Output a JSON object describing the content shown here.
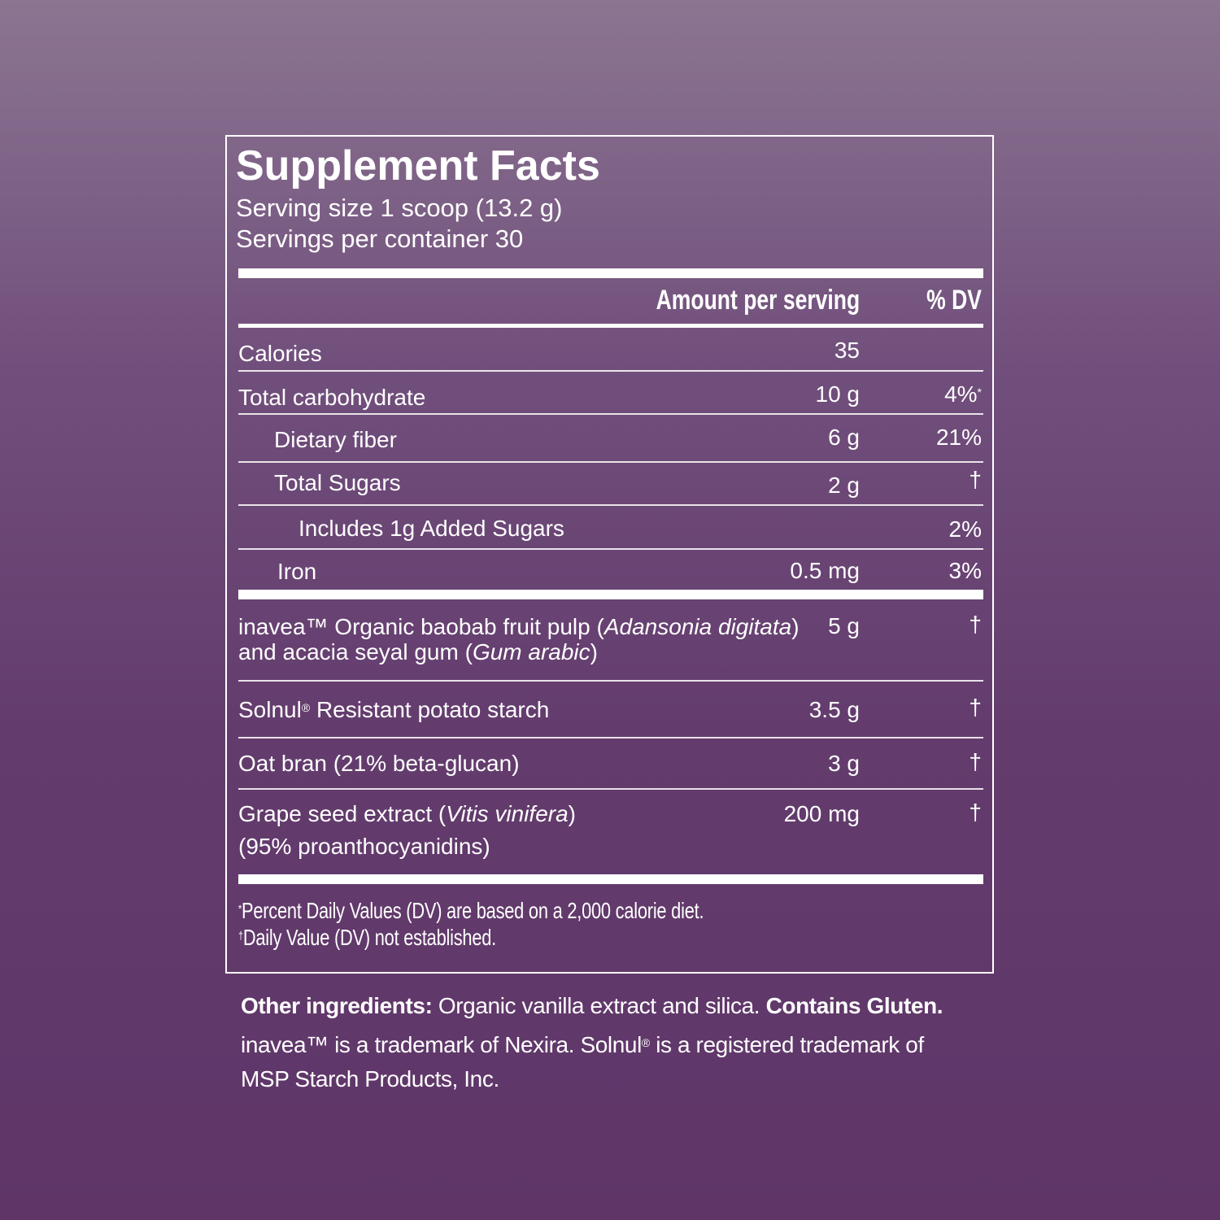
{
  "header": {
    "title": "Supplement Facts",
    "serving_size": "Serving size 1 scoop (13.2 g)",
    "servings_per_container": "Servings per container 30"
  },
  "table": {
    "columns": [
      "Amount per serving",
      "% DV"
    ],
    "nutrients": [
      {
        "name": "Calories",
        "amount": "35"
      },
      {
        "name": "Total carbohydrate",
        "amount": "10 g",
        "dv": "4%",
        "dv_mark": "*"
      },
      {
        "name": "Dietary fiber",
        "amount": "6 g",
        "dv": "21%"
      },
      {
        "name": "Total Sugars",
        "amount": "2 g",
        "dv": "†"
      },
      {
        "name": "Includes 1g Added Sugars",
        "dv": "2%"
      },
      {
        "name": "Iron",
        "amount": "0.5 mg",
        "dv": "3%"
      }
    ],
    "ingredients": [
      {
        "name": [
          "inavea™ Organic baobab fruit pulp (",
          "Adansonia digitata",
          ")"
        ],
        "name_line2": [
          "and acacia seyal gum (",
          "Gum arabic",
          ")"
        ],
        "amount": "5 g",
        "dv": "†"
      },
      {
        "name": [
          "Solnul",
          "®",
          " Resistant potato starch"
        ],
        "amount": "3.5 g",
        "dv": "†"
      },
      {
        "name": [
          "Oat bran (21% beta-glucan)"
        ],
        "amount": "3 g",
        "dv": "†"
      },
      {
        "name": [
          "Grape seed extract (",
          "Vitis vinifera",
          ")"
        ],
        "name_line2": [
          "(95% proanthocyanidins)"
        ],
        "amount": "200 mg",
        "dv": "†"
      }
    ],
    "footnotes": [
      {
        "mark": "*",
        "text": "Percent Daily Values (DV) are based on a 2,000 calorie diet."
      },
      {
        "mark": "†",
        "text": "Daily Value (DV) not established."
      }
    ]
  },
  "other_ingredients": {
    "label": "Other ingredients:",
    "text": " Organic vanilla extract and silica. ",
    "warning": "Contains Gluten."
  },
  "trademarks": [
    "inavea™ is a trademark of Nexira. Solnul",
    "®",
    " is a registered trademark of MSP Starch Products, Inc."
  ]
}
